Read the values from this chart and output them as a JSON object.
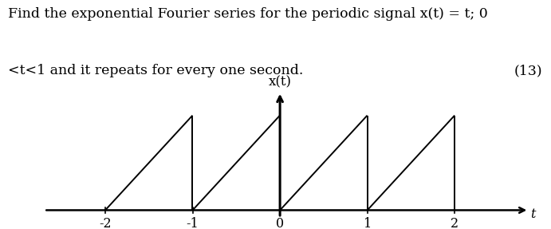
{
  "title_line1": "Find the exponential Fourier series for the periodic signal x(t) = t; 0",
  "title_line2": "<t<1 and it repeats for every one second.",
  "mark_number": "(13)",
  "ylabel": "x(t)",
  "xlabel": "t",
  "xticks": [
    -2,
    -1,
    0,
    1,
    2
  ],
  "xlim": [
    -2.7,
    2.85
  ],
  "ylim": [
    -0.15,
    1.25
  ],
  "axis_color": "#000000",
  "signal_color": "#000000",
  "background_color": "#ffffff",
  "periods": [
    -2,
    -1,
    0,
    1
  ],
  "text_fontsize": 12.5,
  "tick_fontsize": 11.5,
  "ylabel_fontsize": 12,
  "fig_width": 6.91,
  "fig_height": 2.87,
  "dpi": 100
}
